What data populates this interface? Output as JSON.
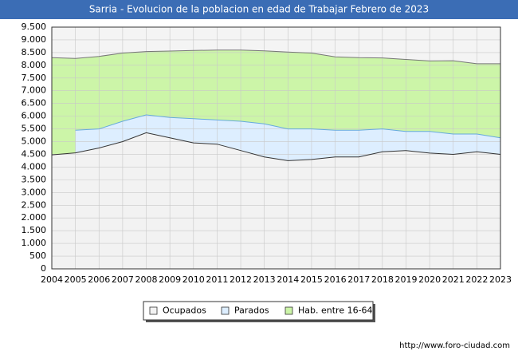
{
  "chart_data": {
    "type": "area",
    "title": "Sarria - Evolucion de la poblacion en edad de Trabajar Febrero de 2023",
    "source": "http://www.foro-ciudad.com",
    "x": [
      2004,
      2005,
      2006,
      2007,
      2008,
      2009,
      2010,
      2011,
      2012,
      2013,
      2014,
      2015,
      2016,
      2017,
      2018,
      2019,
      2020,
      2021,
      2022,
      2023
    ],
    "series": [
      {
        "name": "Ocupados",
        "color": "#f2f2f2",
        "line": "#333333",
        "stack": true,
        "values": [
          4480,
          4560,
          4750,
          5000,
          5350,
          5150,
          4950,
          4900,
          4650,
          4400,
          4250,
          4300,
          4400,
          4400,
          4600,
          4650,
          4550,
          4500,
          4600,
          4500
        ]
      },
      {
        "name": "Parados",
        "color": "#ddeeff",
        "line": "#66aadd",
        "stack": true,
        "values": [
          null,
          890,
          750,
          800,
          700,
          800,
          950,
          950,
          1150,
          1300,
          1250,
          1200,
          1050,
          1050,
          900,
          750,
          850,
          800,
          700,
          650
        ]
      },
      {
        "name": "Hab. entre 16-64",
        "color": "#ccf5a8",
        "line": "#777777",
        "stack": false,
        "values": [
          8300,
          8270,
          8350,
          8480,
          8540,
          8560,
          8580,
          8600,
          8600,
          8570,
          8520,
          8480,
          8330,
          8300,
          8290,
          8230,
          8170,
          8180,
          8060,
          8060
        ]
      }
    ],
    "xlim": [
      2004,
      2023
    ],
    "xticks": [
      2004,
      2005,
      2006,
      2007,
      2008,
      2009,
      2010,
      2011,
      2012,
      2013,
      2014,
      2015,
      2016,
      2017,
      2018,
      2019,
      2020,
      2021,
      2022,
      2023
    ],
    "ylim": [
      0,
      9500
    ],
    "yticks": [
      0,
      500,
      {
        "value": 1000,
        "label": "1.000"
      },
      {
        "value": 1500,
        "label": "1.500"
      },
      {
        "value": 2000,
        "label": "2.000"
      },
      {
        "value": 2500,
        "label": "2.500"
      },
      {
        "value": 3000,
        "label": "3.000"
      },
      {
        "value": 3500,
        "label": "3.500"
      },
      {
        "value": 4000,
        "label": "4.000"
      },
      {
        "value": 4500,
        "label": "4.500"
      },
      {
        "value": 5000,
        "label": "5.000"
      },
      {
        "value": 5500,
        "label": "5.500"
      },
      {
        "value": 6000,
        "label": "6.000"
      },
      {
        "value": 6500,
        "label": "6.500"
      },
      {
        "value": 7000,
        "label": "7.000"
      },
      {
        "value": 7500,
        "label": "7.500"
      },
      {
        "value": 8000,
        "label": "8.000"
      },
      {
        "value": 8500,
        "label": "8.500"
      },
      {
        "value": 9000,
        "label": "9.000"
      },
      {
        "value": 9500,
        "label": "9.500"
      }
    ],
    "grid": true,
    "legend": "bottom"
  }
}
